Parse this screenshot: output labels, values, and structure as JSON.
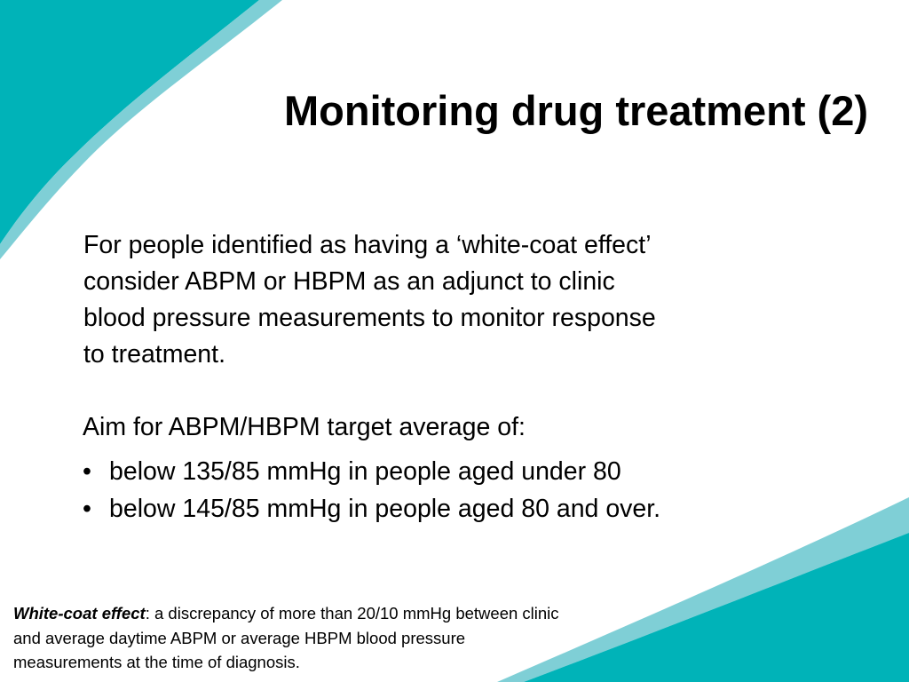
{
  "slide": {
    "title": "Monitoring drug treatment (2)",
    "paragraph_lines": [
      "For people identified as having a ‘white-coat effect’",
      "consider ABPM or HBPM as an adjunct to clinic",
      "blood pressure measurements to monitor response",
      "to treatment."
    ],
    "aim": "Aim for ABPM/HBPM target average of:",
    "bullet_marker": "•",
    "bullets": [
      "below 135/85 mmHg in people aged under 80",
      "below 145/85 mmHg in people aged 80 and over."
    ],
    "footnote": {
      "term": "White-coat effect",
      "line1_rest": ": a discrepancy of more than 20/10 mmHg between clinic",
      "line2": "and average daytime ABPM or average HBPM blood pressure",
      "line3": "measurements at the time of diagnosis."
    }
  },
  "colors": {
    "accent": "#00B3B8",
    "accent_light": "#7FCFD6",
    "text": "#000000",
    "background": "#FFFFFF"
  }
}
